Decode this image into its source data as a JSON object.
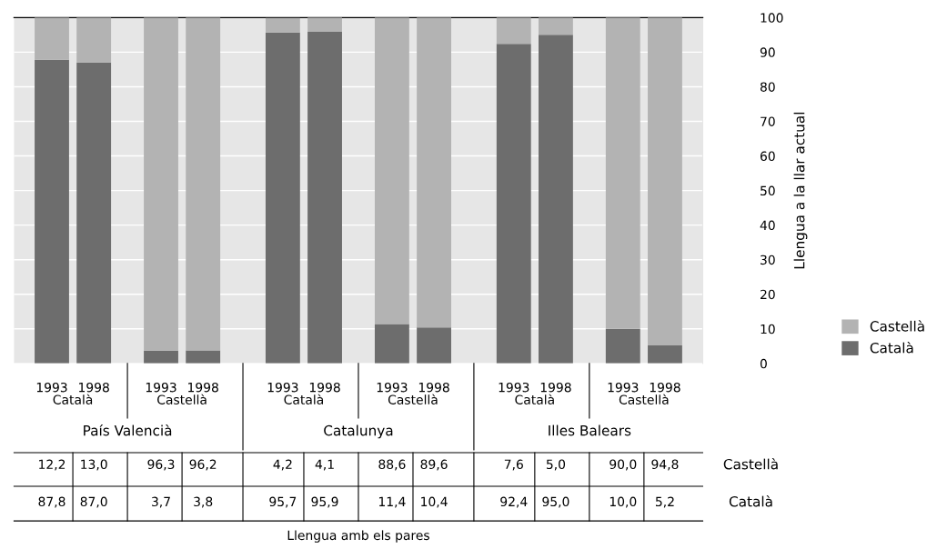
{
  "chart_data": {
    "type": "bar",
    "stacked": true,
    "categories": [
      "1993",
      "1998",
      "1993",
      "1998",
      "1993",
      "1998",
      "1993",
      "1998",
      "1993",
      "1998",
      "1993",
      "1998"
    ],
    "series": [
      {
        "name": "Català",
        "color": "#6d6d6d",
        "values": [
          87.8,
          87.0,
          3.7,
          3.8,
          95.7,
          95.9,
          11.4,
          10.4,
          92.4,
          95.0,
          10.0,
          5.2
        ],
        "value_labels": [
          "87,8",
          "87,0",
          "3,7",
          "3,8",
          "95,7",
          "95,9",
          "11,4",
          "10,4",
          "92,4",
          "95,0",
          "10,0",
          "5,2"
        ]
      },
      {
        "name": "Castellà",
        "color": "#b3b3b3",
        "values": [
          12.2,
          13.0,
          96.3,
          96.2,
          4.2,
          4.1,
          88.6,
          89.6,
          7.6,
          5.0,
          90.0,
          94.8
        ],
        "value_labels": [
          "12,2",
          "13,0",
          "96,3",
          "96,2",
          "4,2",
          "4,1",
          "88,6",
          "89,6",
          "7,6",
          "5,0",
          "90,0",
          "94,8"
        ]
      }
    ],
    "annotations": [
      "Català",
      "Castellà",
      "Català",
      "Castellà",
      "Català",
      "Castellà",
      "País Valencià",
      "Catalunya",
      "Illes Balears",
      "Llengua amb els pares"
    ],
    "ylabel": "Llengua a la llar actual",
    "ylim": [
      0,
      100
    ],
    "yticks": [
      0,
      10,
      20,
      30,
      40,
      50,
      60,
      70,
      80,
      90,
      100
    ],
    "grid": "y",
    "legend": "right"
  }
}
